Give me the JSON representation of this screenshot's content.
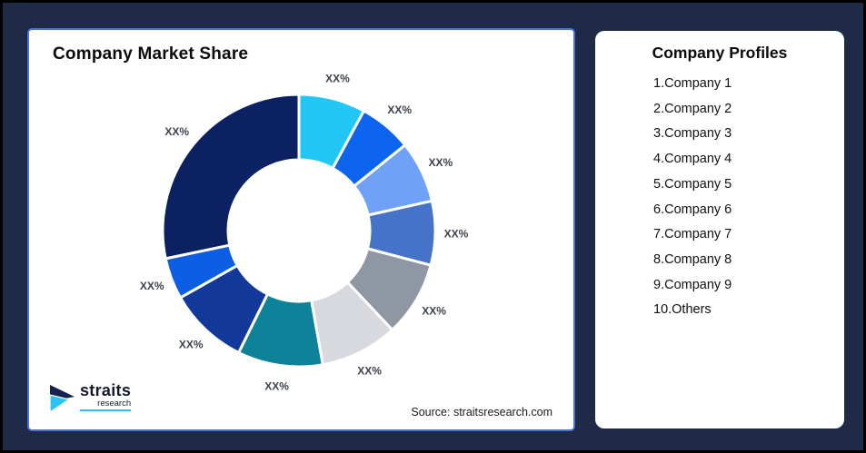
{
  "frame": {
    "background": "#1F2A47",
    "outer_border": "#000000"
  },
  "left_card": {
    "title": "Company Market Share",
    "source": "Source: straitsresearch.com",
    "border_color": "#4A6FE0",
    "logo": {
      "name": "straits",
      "sub": "research",
      "navy": "#14234F",
      "cyan": "#29C5F2"
    }
  },
  "right_card": {
    "title": "Company Profiles",
    "items": [
      "1.Company 1",
      "2.Company 2",
      "3.Company 3",
      "4.Company 4",
      "5.Company 5",
      "6.Company 6",
      "7.Company 7",
      "8.Company 8",
      "9.Company 9",
      "10.Others"
    ]
  },
  "chart_data": {
    "type": "pie",
    "title": "Company Market Share",
    "donut": true,
    "inner_radius_ratio": 0.52,
    "outer_radius_px": 150,
    "start_angle_deg": 0,
    "direction": "clockwise",
    "legend_position": "none",
    "label_color": "#3D434D",
    "segment_gap_color": "#FFFFFF",
    "segments": [
      {
        "name": "Company 1",
        "value": 7.9,
        "color": "#22C7F5",
        "label": "XX%"
      },
      {
        "name": "Company 2",
        "value": 6.3,
        "color": "#0D64EE",
        "label": "XX%"
      },
      {
        "name": "Company 3",
        "value": 7.3,
        "color": "#6FA1F7",
        "label": "XX%"
      },
      {
        "name": "Company 4",
        "value": 7.6,
        "color": "#4573C7",
        "label": "XX%"
      },
      {
        "name": "Company 5",
        "value": 8.9,
        "color": "#8F96A4",
        "label": "XX%"
      },
      {
        "name": "Company 6",
        "value": 9.2,
        "color": "#D7D9DE",
        "label": "XX%"
      },
      {
        "name": "Company 7",
        "value": 10.1,
        "color": "#0D8298",
        "label": "XX%"
      },
      {
        "name": "Company 8",
        "value": 9.5,
        "color": "#12399A",
        "label": "XX%"
      },
      {
        "name": "Company 9",
        "value": 4.9,
        "color": "#0C5FE4",
        "label": "XX%"
      },
      {
        "name": "Others",
        "value": 28.3,
        "color": "#0B2161",
        "label": "XX%"
      }
    ]
  }
}
